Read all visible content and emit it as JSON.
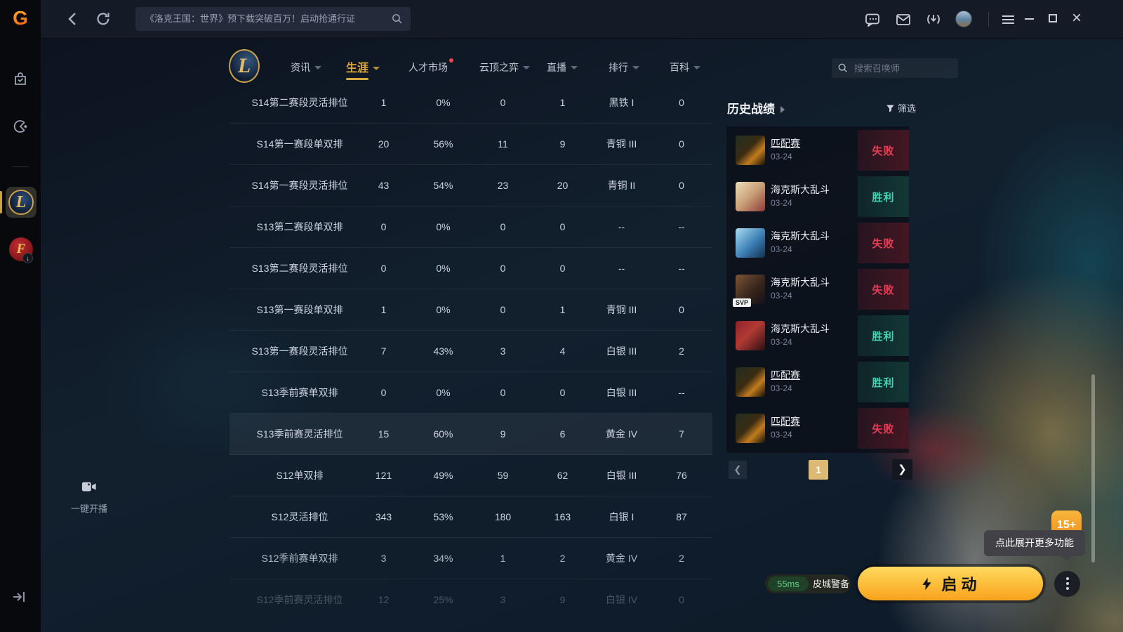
{
  "topbar": {
    "search_text": "《洛克王国：世界》预下载突破百万！启动抢通行证"
  },
  "nav": {
    "tabs": [
      {
        "label": "资讯",
        "caret": true
      },
      {
        "label": "生涯",
        "caret": true,
        "active": true
      },
      {
        "label": "人才市场",
        "dot": true
      },
      {
        "label": "云顶之弈",
        "caret": true
      },
      {
        "label": "直播",
        "caret": true
      },
      {
        "label": "排行",
        "caret": true
      },
      {
        "label": "百科",
        "caret": true
      }
    ],
    "summoner_search_placeholder": "搜索召唤师"
  },
  "career_table": {
    "rows": [
      {
        "name": "S14第二赛段灵活排位",
        "games": "1",
        "winrate": "0%",
        "wins": "0",
        "losses": "1",
        "rank": "黑铁 I",
        "points": "0"
      },
      {
        "name": "S14第一赛段单双排",
        "games": "20",
        "winrate": "56%",
        "wins": "11",
        "losses": "9",
        "rank": "青铜 III",
        "points": "0"
      },
      {
        "name": "S14第一赛段灵活排位",
        "games": "43",
        "winrate": "54%",
        "wins": "23",
        "losses": "20",
        "rank": "青铜 II",
        "points": "0"
      },
      {
        "name": "S13第二赛段单双排",
        "games": "0",
        "winrate": "0%",
        "wins": "0",
        "losses": "0",
        "rank": "--",
        "points": "--"
      },
      {
        "name": "S13第二赛段灵活排位",
        "games": "0",
        "winrate": "0%",
        "wins": "0",
        "losses": "0",
        "rank": "--",
        "points": "--"
      },
      {
        "name": "S13第一赛段单双排",
        "games": "1",
        "winrate": "0%",
        "wins": "0",
        "losses": "1",
        "rank": "青铜 III",
        "points": "0"
      },
      {
        "name": "S13第一赛段灵活排位",
        "games": "7",
        "winrate": "43%",
        "wins": "3",
        "losses": "4",
        "rank": "白银 III",
        "points": "2"
      },
      {
        "name": "S13季前赛单双排",
        "games": "0",
        "winrate": "0%",
        "wins": "0",
        "losses": "0",
        "rank": "白银 III",
        "points": "--"
      },
      {
        "name": "S13季前赛灵活排位",
        "games": "15",
        "winrate": "60%",
        "wins": "9",
        "losses": "6",
        "rank": "黄金 IV",
        "points": "7",
        "state": "highlight"
      },
      {
        "name": "S12单双排",
        "games": "121",
        "winrate": "49%",
        "wins": "59",
        "losses": "62",
        "rank": "白银 III",
        "points": "76"
      },
      {
        "name": "S12灵活排位",
        "games": "343",
        "winrate": "53%",
        "wins": "180",
        "losses": "163",
        "rank": "白银 I",
        "points": "87"
      },
      {
        "name": "S12季前赛单双排",
        "games": "3",
        "winrate": "34%",
        "wins": "1",
        "losses": "2",
        "rank": "黄金 IV",
        "points": "2",
        "state": "fade1"
      },
      {
        "name": "S12季前赛灵活排位",
        "games": "12",
        "winrate": "25%",
        "wins": "3",
        "losses": "9",
        "rank": "白银 IV",
        "points": "0",
        "state": "fade2"
      }
    ]
  },
  "history": {
    "title": "历史战绩",
    "filter_label": "筛选",
    "matches": [
      {
        "mode": "匹配赛",
        "date": "03-24",
        "result": "失败",
        "outcome": "loss",
        "icon": "kayn",
        "underline": true
      },
      {
        "mode": "海克斯大乱斗",
        "date": "03-24",
        "result": "胜利",
        "outcome": "win",
        "icon": "vladimir"
      },
      {
        "mode": "海克斯大乱斗",
        "date": "03-24",
        "result": "失败",
        "outcome": "loss",
        "icon": "frost"
      },
      {
        "mode": "海克斯大乱斗",
        "date": "03-24",
        "result": "失败",
        "outcome": "loss",
        "icon": "svp",
        "badge": "SVP"
      },
      {
        "mode": "海克斯大乱斗",
        "date": "03-24",
        "result": "胜利",
        "outcome": "win",
        "icon": "leesin"
      },
      {
        "mode": "匹配赛",
        "date": "03-24",
        "result": "胜利",
        "outcome": "win",
        "icon": "kayn",
        "underline": true
      },
      {
        "mode": "匹配赛",
        "date": "03-24",
        "result": "失败",
        "outcome": "loss",
        "icon": "kayn",
        "underline": true
      }
    ],
    "pagination": {
      "current_page": "1"
    }
  },
  "footer": {
    "stream_label": "一键开播",
    "ping": "55ms",
    "server_name": "皮城警备",
    "launch_label": "启动",
    "more_tooltip": "点此展开更多功能",
    "more_badge": "15+"
  },
  "colors": {
    "accent_gold": "#d9a93f",
    "win_teal": "#3fd6b4",
    "loss_red": "#e23e54",
    "launch_gradient_top": "#ffd95e",
    "launch_gradient_bottom": "#f9a21b",
    "page_active": "#dcba74",
    "ping_green": "#62cd84"
  },
  "icons": {
    "wegame-logo": "G",
    "store-icon": "shopping-bag",
    "games-icon": "game-controller",
    "lol-icon": "L",
    "cf-icon": "F",
    "back-icon": "chevron-left",
    "refresh-icon": "circular-arrow",
    "search-icon": "magnifier",
    "chat-icon": "speech-bubble",
    "mail-icon": "envelope",
    "download-icon": "arrow-down",
    "menu-icon": "hamburger",
    "filter-icon": "funnel",
    "camera-icon": "video-camera",
    "launch-icon": "lightning-bolt",
    "more-icon": "kebab-dots"
  }
}
